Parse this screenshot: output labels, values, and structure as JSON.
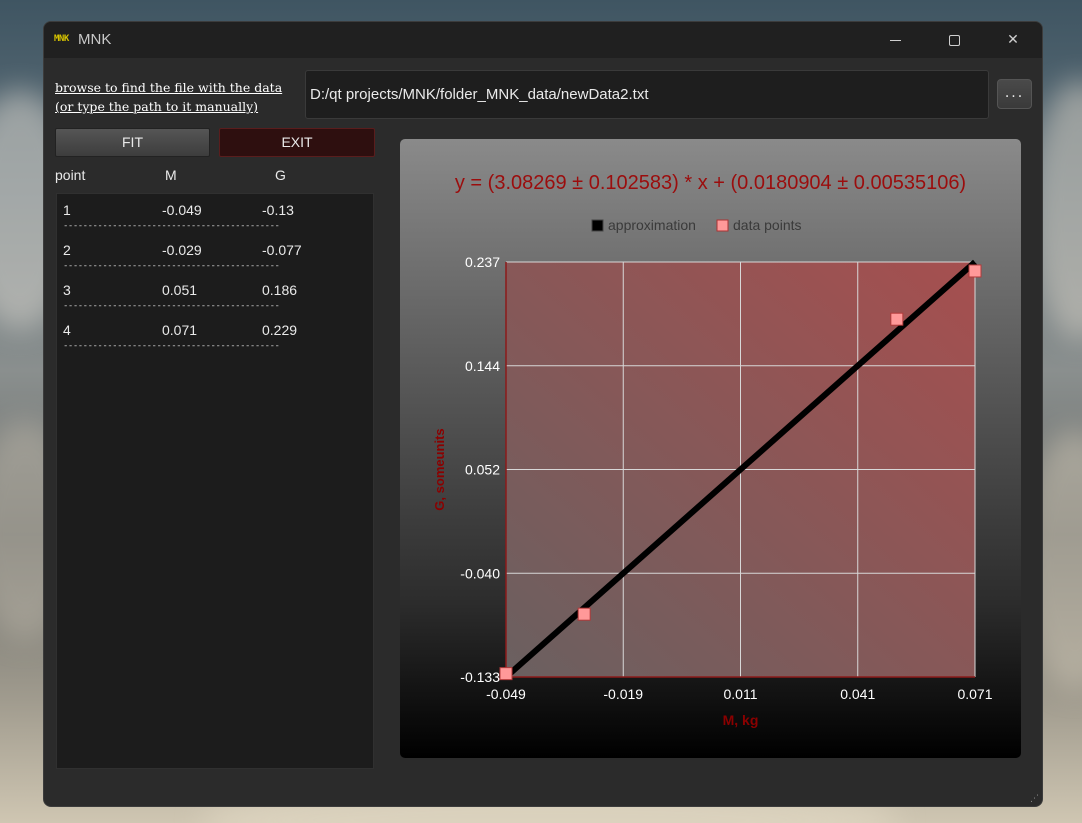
{
  "window": {
    "title": "MNK",
    "icon": "MNK",
    "controls": {
      "minimize": "minimize-icon",
      "maximize": "maximize-icon",
      "close": "close-icon"
    }
  },
  "browse": {
    "label_line1": "browse to find the file with the data",
    "label_line2": "(or type the path to it manually)",
    "path": "D:/qt projects/MNK/folder_MNK_data/newData2.txt",
    "browse_button": "..."
  },
  "buttons": {
    "fit": "FIT",
    "exit": "EXIT"
  },
  "table": {
    "headers": [
      "point",
      "M",
      "G"
    ],
    "rows": [
      {
        "point": "1",
        "M": "-0.049",
        "G": "-0.13"
      },
      {
        "point": "2",
        "M": "-0.029",
        "G": "-0.077"
      },
      {
        "point": "3",
        "M": "0.051",
        "G": "0.186"
      },
      {
        "point": "4",
        "M": "0.071",
        "G": "0.229"
      }
    ],
    "separator": "--------------------------------------------"
  },
  "colors": {
    "title": "#9b0d0d",
    "axis_label": "#8b0000",
    "line": "#000000",
    "points": "#ff9999",
    "plot_bg_left": "#6a6060",
    "plot_bg_right": "#a64f4f"
  },
  "chart_data": {
    "type": "scatter",
    "title": "y = (3.08269 ± 0.102583) * x + (0.0180904 ± 0.00535106)",
    "xlabel": "M, kg",
    "ylabel": "G, someunits",
    "xlim": [
      -0.049,
      0.071
    ],
    "ylim": [
      -0.133,
      0.237
    ],
    "xticks": [
      "-0.049",
      "-0.019",
      "0.011",
      "0.041",
      "0.071"
    ],
    "yticks": [
      "0.237",
      "0.144",
      "0.052",
      "-0.040",
      "-0.133"
    ],
    "grid": true,
    "legend_position": "top-center",
    "series": [
      {
        "name": "approximation",
        "kind": "line",
        "x": [
          -0.049,
          0.071
        ],
        "y": [
          -0.133,
          0.237
        ]
      },
      {
        "name": "data points",
        "kind": "scatter",
        "x": [
          -0.049,
          -0.029,
          0.051,
          0.071
        ],
        "y": [
          -0.13,
          -0.077,
          0.186,
          0.229
        ]
      }
    ]
  }
}
